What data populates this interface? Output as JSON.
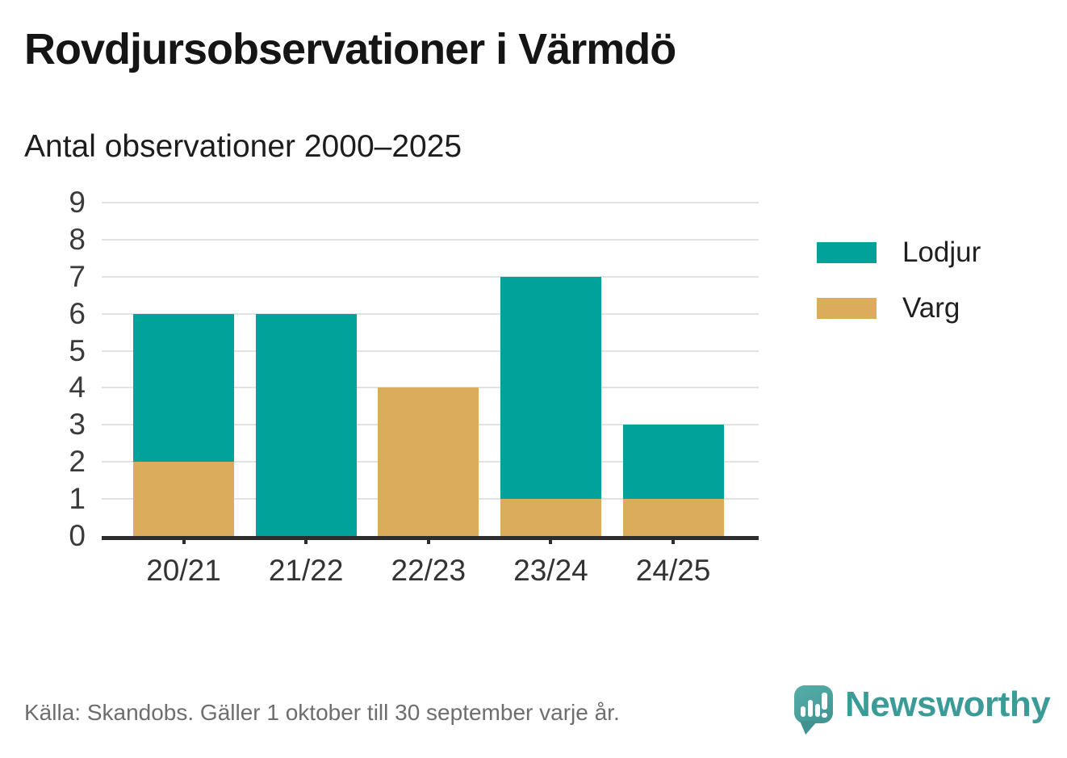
{
  "header": {
    "title": "Rovdjursobservationer i Värmdö",
    "subtitle": "Antal observationer 2000–2025"
  },
  "footer": {
    "source": "Källa: Skandobs. Gäller 1 oktober till 30 september varje år.",
    "brand": "Newsworthy",
    "brand_color": "#3a9b97",
    "logo_icon": "newsworthy-speech-bubble-chart-icon"
  },
  "chart_data": {
    "type": "bar",
    "stacked": true,
    "title": "Rovdjursobservationer i Värmdö",
    "subtitle": "Antal observationer 2000–2025",
    "categories": [
      "20/21",
      "21/22",
      "22/23",
      "23/24",
      "24/25"
    ],
    "series": [
      {
        "name": "Lodjur",
        "color": "#00a29a",
        "values": [
          4,
          6,
          0,
          6,
          2
        ]
      },
      {
        "name": "Varg",
        "color": "#dbac5b",
        "values": [
          2,
          0,
          4,
          1,
          1
        ]
      }
    ],
    "stack_bottom_to_top": [
      "Varg",
      "Lodjur"
    ],
    "totals": [
      6,
      6,
      4,
      7,
      3
    ],
    "xlabel": "",
    "ylabel": "",
    "ylim": [
      0,
      9
    ],
    "yticks": [
      0,
      1,
      2,
      3,
      4,
      5,
      6,
      7,
      8,
      9
    ],
    "grid": true,
    "gridline_color": "#e2e2e2",
    "axis_color": "#2d2d2d",
    "legend_position": "right"
  }
}
